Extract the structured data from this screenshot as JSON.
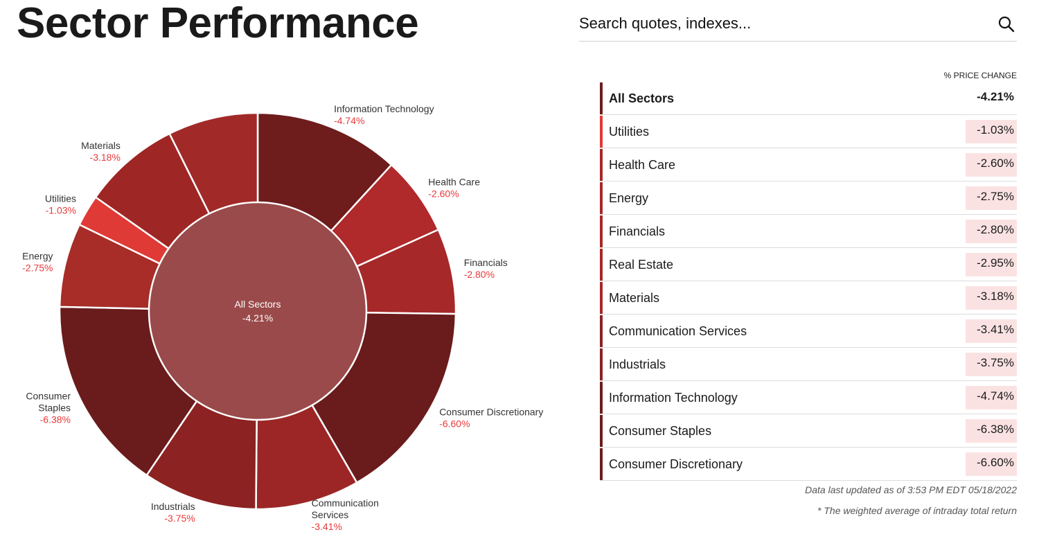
{
  "page": {
    "title": "Sector Performance"
  },
  "search": {
    "placeholder": "Search quotes, indexes..."
  },
  "colors": {
    "darkest": "#6e1c1c",
    "dark": "#8c2222",
    "medium": "#a62828",
    "light": "#b5302c",
    "brightest": "#e03a36",
    "center": "#9a4a4a",
    "negative_text": "#e8393a",
    "value_bg": "#fbe2e2"
  },
  "chart_data": {
    "type": "pie",
    "center": {
      "label": "All Sectors",
      "value": -4.21,
      "display": "-4.21%"
    },
    "slices": [
      {
        "name": "Information Technology",
        "label_lines": [
          "Information Technology"
        ],
        "value": -4.74,
        "display": "-4.74%",
        "color": "#6e1c1c"
      },
      {
        "name": "Health Care",
        "label_lines": [
          "Health Care"
        ],
        "value": -2.6,
        "display": "-2.60%",
        "color": "#b0292b"
      },
      {
        "name": "Financials",
        "label_lines": [
          "Financials"
        ],
        "value": -2.8,
        "display": "-2.80%",
        "color": "#a62828"
      },
      {
        "name": "Consumer Discretionary",
        "label_lines": [
          "Consumer Discretionary"
        ],
        "value": -6.6,
        "display": "-6.60%",
        "color": "#6a1b1b"
      },
      {
        "name": "Communication Services",
        "label_lines": [
          "Communication",
          "Services"
        ],
        "value": -3.41,
        "display": "-3.41%",
        "color": "#9c2626"
      },
      {
        "name": "Industrials",
        "label_lines": [
          "Industrials"
        ],
        "value": -3.75,
        "display": "-3.75%",
        "color": "#8c2222"
      },
      {
        "name": "Consumer Staples",
        "label_lines": [
          "Consumer",
          "Staples"
        ],
        "value": -6.38,
        "display": "-6.38%",
        "color": "#6a1b1b"
      },
      {
        "name": "Energy",
        "label_lines": [
          "Energy"
        ],
        "value": -2.75,
        "display": "-2.75%",
        "color": "#a82c28"
      },
      {
        "name": "Utilities",
        "label_lines": [
          "Utilities"
        ],
        "value": -1.03,
        "display": "-1.03%",
        "color": "#e03a36"
      },
      {
        "name": "Materials",
        "label_lines": [
          "Materials"
        ],
        "value": -3.18,
        "display": "-3.18%",
        "color": "#9e2624"
      },
      {
        "name": "Real Estate",
        "label_lines": [],
        "value": -2.95,
        "display": "",
        "color": "#a12a28"
      }
    ]
  },
  "table": {
    "column_header": "% PRICE CHANGE",
    "rows": [
      {
        "name": "All Sectors",
        "value": "-4.21%",
        "bar_color": "#6e1c1c"
      },
      {
        "name": "Utilities",
        "value": "-1.03%",
        "bar_color": "#e03a36"
      },
      {
        "name": "Health Care",
        "value": "-2.60%",
        "bar_color": "#a62828"
      },
      {
        "name": "Energy",
        "value": "-2.75%",
        "bar_color": "#a62828"
      },
      {
        "name": "Financials",
        "value": "-2.80%",
        "bar_color": "#a62828"
      },
      {
        "name": "Real Estate",
        "value": "-2.95%",
        "bar_color": "#a62828"
      },
      {
        "name": "Materials",
        "value": "-3.18%",
        "bar_color": "#a62828"
      },
      {
        "name": "Communication Services",
        "value": "-3.41%",
        "bar_color": "#8c2222"
      },
      {
        "name": "Industrials",
        "value": "-3.75%",
        "bar_color": "#8c2222"
      },
      {
        "name": "Information Technology",
        "value": "-4.74%",
        "bar_color": "#6e1c1c"
      },
      {
        "name": "Consumer Staples",
        "value": "-6.38%",
        "bar_color": "#6e1c1c"
      },
      {
        "name": "Consumer Discretionary",
        "value": "-6.60%",
        "bar_color": "#6e1c1c"
      }
    ]
  },
  "footer": {
    "updated": "Data last updated as of 3:53 PM EDT 05/18/2022",
    "note": "* The weighted average of intraday total return"
  }
}
